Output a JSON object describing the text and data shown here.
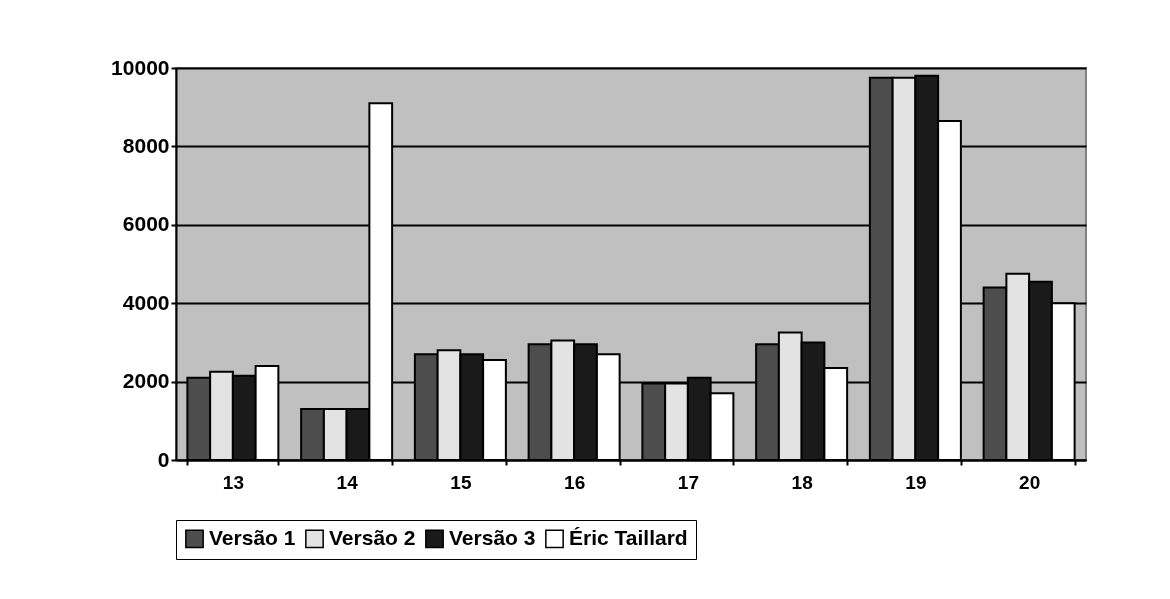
{
  "chart_data": {
    "type": "bar",
    "categories": [
      "13",
      "14",
      "15",
      "16",
      "17",
      "18",
      "19",
      "20"
    ],
    "series": [
      {
        "name": "Versão 1",
        "color": "#4d4d4d",
        "values": [
          2100,
          1300,
          2700,
          2950,
          1950,
          2950,
          9750,
          4400
        ]
      },
      {
        "name": "Versão 2",
        "color": "#e3e3e3",
        "values": [
          2250,
          1300,
          2800,
          3050,
          1950,
          3250,
          9750,
          4750
        ]
      },
      {
        "name": "Versão 3",
        "color": "#1a1a1a",
        "values": [
          2150,
          1300,
          2700,
          2950,
          2100,
          3000,
          9800,
          4550
        ]
      },
      {
        "name": "Éric Taillard",
        "color": "#ffffff",
        "values": [
          2400,
          9100,
          2550,
          2700,
          1700,
          2350,
          8650,
          4000
        ]
      }
    ],
    "ylim": [
      0,
      10000
    ],
    "yticks": [
      0,
      2000,
      4000,
      6000,
      8000,
      10000
    ],
    "grid": "y",
    "legend": "bottom"
  }
}
